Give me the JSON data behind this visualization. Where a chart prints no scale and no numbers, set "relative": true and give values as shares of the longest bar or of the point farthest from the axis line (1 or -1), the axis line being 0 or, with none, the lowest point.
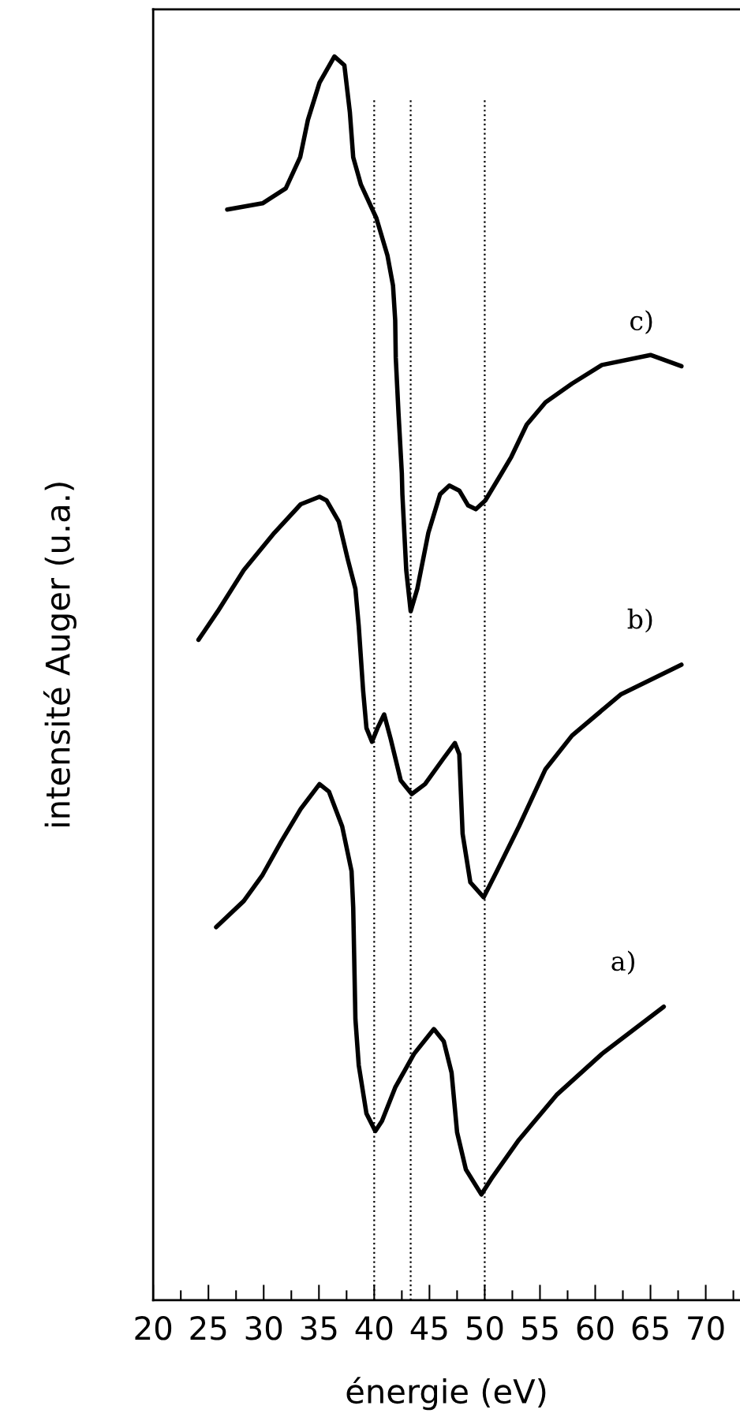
{
  "chart_data": {
    "type": "line",
    "relative": true,
    "xlabel": "énergie (eV)",
    "ylabel": "intensité Auger (u.a.)",
    "xlim": [
      20,
      73.1
    ],
    "xticks": [
      20,
      {
        "value": 22.5,
        "label": null
      },
      25,
      {
        "value": 27.5,
        "label": null
      },
      30,
      {
        "value": 32.5,
        "label": null
      },
      35,
      {
        "value": 37.5,
        "label": null
      },
      40,
      {
        "value": 42.5,
        "label": null
      },
      45,
      {
        "value": 47.5,
        "label": null
      },
      50,
      {
        "value": 52.5,
        "label": null
      },
      55,
      {
        "value": 57.5,
        "label": null
      },
      60,
      {
        "value": 62.5,
        "label": null
      },
      65,
      {
        "value": 67.5,
        "label": null
      },
      70,
      {
        "value": 72.5,
        "label": null
      }
    ],
    "grid": false,
    "legend": false,
    "marker": "none",
    "line_style": "solid",
    "ref_lines": [
      {
        "axis": "x",
        "value": 40,
        "color": "#000000",
        "line_style": "dotted"
      },
      {
        "axis": "x",
        "value": 43.3,
        "color": "#000000",
        "line_style": "dotted"
      },
      {
        "axis": "x",
        "value": 50,
        "color": "#000000",
        "line_style": "dotted"
      }
    ],
    "series": [
      {
        "name": "c)",
        "color": "#000000",
        "x": [
          26.7,
          29.9,
          32.0,
          33.3,
          34.0,
          35.05,
          36.4,
          37.3,
          37.8,
          38.1,
          38.8,
          40.2,
          41.2,
          41.7,
          41.9,
          41.95,
          42.2,
          42.5,
          42.55,
          42.9,
          43.3,
          43.9,
          44.9,
          45.96,
          46.8,
          47.7,
          48.5,
          49.2,
          50.05,
          51.4,
          52.4,
          53.8,
          55.5,
          57.9,
          60.6,
          65.0,
          67.8
        ],
        "values": [
          0.877,
          0.882,
          0.894,
          0.919,
          0.949,
          0.979,
          1.0,
          0.993,
          0.955,
          0.919,
          0.897,
          0.87,
          0.84,
          0.816,
          0.788,
          0.758,
          0.713,
          0.665,
          0.648,
          0.587,
          0.554,
          0.572,
          0.617,
          0.648,
          0.655,
          0.651,
          0.639,
          0.636,
          0.643,
          0.663,
          0.678,
          0.704,
          0.722,
          0.737,
          0.752,
          0.76,
          0.751
        ]
      },
      {
        "name": "b)",
        "color": "#000000",
        "x": [
          24.1,
          25.85,
          28.2,
          30.96,
          33.35,
          35.05,
          35.7,
          36.8,
          37.6,
          38.3,
          38.6,
          39.0,
          39.3,
          39.8,
          40.3,
          40.9,
          41.5,
          42.4,
          43.4,
          44.6,
          46.3,
          47.3,
          47.7,
          48.0,
          48.7,
          49.9,
          51.1,
          53.1,
          55.5,
          57.9,
          62.3,
          67.8
        ],
        "values": [
          0.531,
          0.554,
          0.587,
          0.617,
          0.64,
          0.646,
          0.643,
          0.626,
          0.596,
          0.572,
          0.542,
          0.49,
          0.46,
          0.449,
          0.46,
          0.471,
          0.451,
          0.418,
          0.407,
          0.415,
          0.436,
          0.448,
          0.439,
          0.375,
          0.336,
          0.324,
          0.345,
          0.381,
          0.427,
          0.454,
          0.487,
          0.511
        ]
      },
      {
        "name": "a)",
        "color": "#000000",
        "x": [
          25.7,
          28.2,
          29.9,
          31.6,
          33.35,
          35.05,
          35.9,
          37.1,
          37.95,
          38.1,
          38.3,
          38.6,
          39.3,
          40.1,
          40.7,
          41.9,
          43.6,
          45.4,
          46.3,
          47.0,
          47.5,
          48.3,
          49.7,
          50.7,
          53.1,
          56.5,
          60.6,
          66.2
        ],
        "values": [
          0.3,
          0.321,
          0.342,
          0.369,
          0.395,
          0.415,
          0.409,
          0.381,
          0.345,
          0.316,
          0.226,
          0.189,
          0.15,
          0.136,
          0.144,
          0.171,
          0.198,
          0.218,
          0.208,
          0.183,
          0.135,
          0.105,
          0.085,
          0.099,
          0.129,
          0.165,
          0.198,
          0.236
        ]
      }
    ]
  }
}
